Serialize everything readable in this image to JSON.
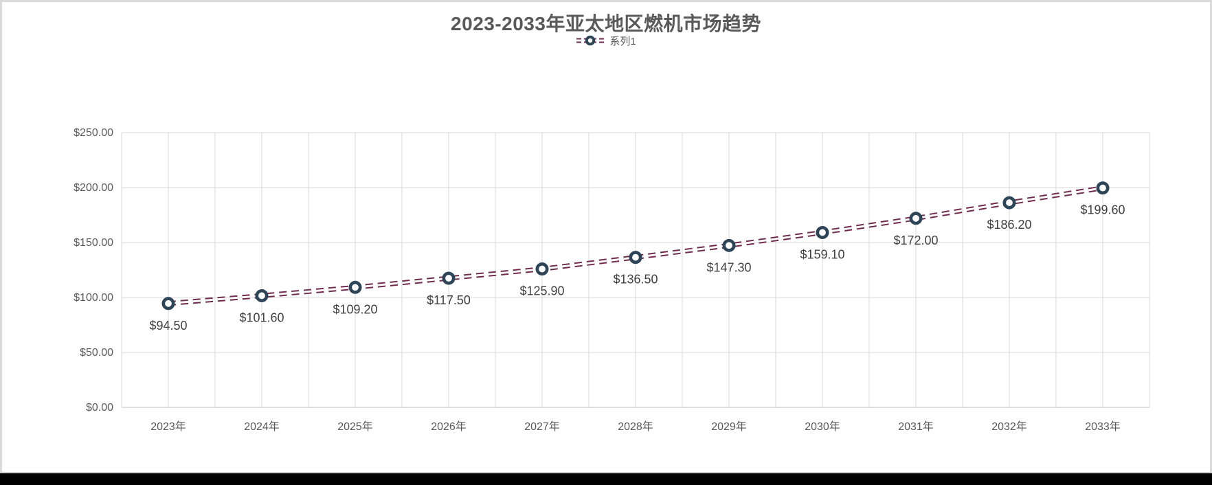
{
  "page": {
    "background": "#ffffff",
    "frame_border_color": "#d9d9d9",
    "bottom_bar_color": "#000000"
  },
  "chart_data": {
    "type": "line",
    "title": "2023-2033年亚太地区燃机市场趋势",
    "legend_position": "top",
    "categories": [
      "2023年",
      "2024年",
      "2025年",
      "2026年",
      "2027年",
      "2028年",
      "2029年",
      "2030年",
      "2031年",
      "2032年",
      "2033年"
    ],
    "series": [
      {
        "name": "系列1",
        "values": [
          94.5,
          101.6,
          109.2,
          117.5,
          125.9,
          136.5,
          147.3,
          159.1,
          172.0,
          186.2,
          199.6
        ],
        "data_labels": [
          "$94.50",
          "$101.60",
          "$109.20",
          "$117.50",
          "$125.90",
          "$136.50",
          "$147.30",
          "$159.10",
          "$172.00",
          "$186.20",
          "$199.60"
        ],
        "line_style": "double-dashed",
        "marker": "ring"
      }
    ],
    "y_axis": {
      "min": 0,
      "max": 250,
      "step": 50,
      "tick_labels": [
        "$0.00",
        "$50.00",
        "$100.00",
        "$150.00",
        "$200.00",
        "$250.00"
      ]
    },
    "grid": {
      "horizontal": true,
      "vertical": true,
      "vertical_lines_per_category": 2
    },
    "colors": {
      "line": "#6E2B4D",
      "line_inner_gap": "#ffffff",
      "marker_stroke": "#2E4457",
      "marker_fill": "#ffffff",
      "gridline": "#D9D9D9",
      "axis_line": "#BFBFBF",
      "title_text": "#595959",
      "tick_text": "#595959",
      "data_label_text": "#404040"
    }
  }
}
